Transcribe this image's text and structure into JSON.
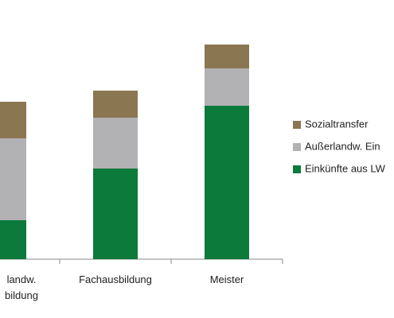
{
  "chart_data": {
    "type": "stacked_bar",
    "categories": [
      "landw.\nbildung",
      "Fachausbildung",
      "Meister"
    ],
    "series": [
      {
        "name": "Einkünfte aus LW",
        "color": "#0b7a3b",
        "values": [
          49,
          114,
          193
        ]
      },
      {
        "name": "Außerlandw. Ein",
        "color": "#b2b2b4",
        "values": [
          103,
          64,
          47
        ]
      },
      {
        "name": "Sozialtransfer",
        "color": "#8b7652",
        "values": [
          46,
          34,
          30
        ]
      }
    ],
    "ylim": [
      0,
      300
    ]
  }
}
